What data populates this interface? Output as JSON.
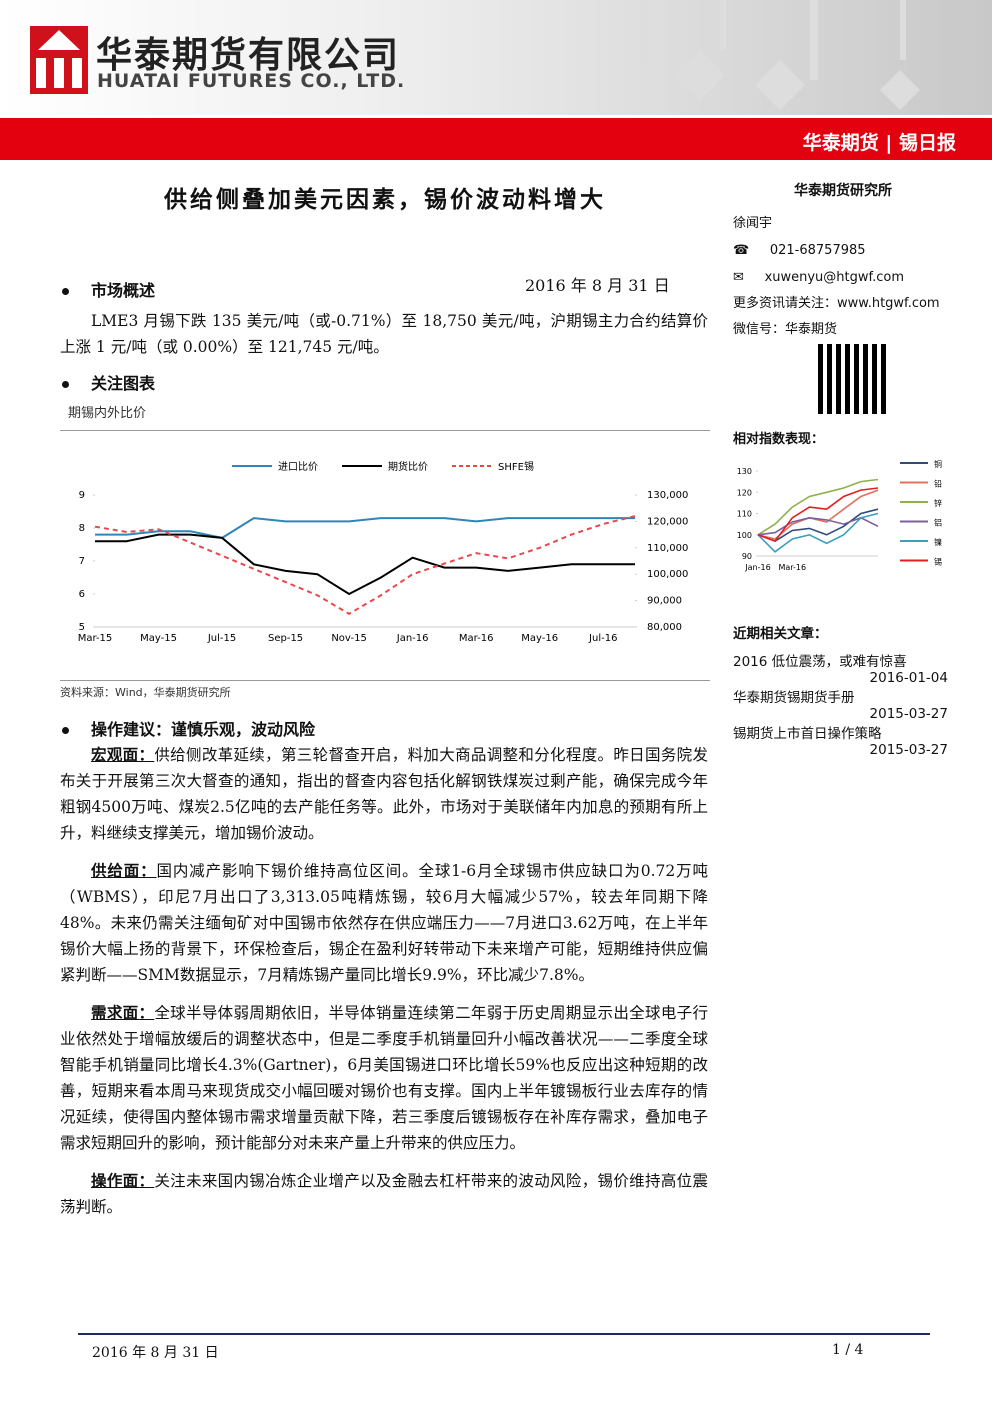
{
  "header": {
    "company_cn": "华泰期货有限公司",
    "company_en": "HUATAI FUTURES CO., LTD.",
    "report_tag": "华泰期货",
    "report_name": "锡日报"
  },
  "title": "供给侧叠加美元因素，锡价波动料增大",
  "date": "2016 年 8 月 31 日",
  "sections": [
    {
      "heading": "市场概述",
      "paragraphs": [
        {
          "text": "LME3 月锡下跌 135 美元/吨（或-0.71%）至 18,750 美元/吨，沪期锡主力合约结算价上涨 1 元/吨（或 0.00%）至 121,745 元/吨。"
        }
      ]
    },
    {
      "heading": "关注图表",
      "source": "资料来源：Wind，华泰期货研究所"
    },
    {
      "heading": "操作建议：谨慎乐观，波动风险",
      "paragraphs": [
        {
          "label": "宏观面：",
          "text": "供给侧改革延续，第三轮督查开启，料加大商品调整和分化程度。昨日国务院发布关于开展第三次大督查的通知，指出的督查内容包括化解钢铁煤炭过剩产能，确保完成今年粗钢4500万吨、煤炭2.5亿吨的去产能任务等。此外，市场对于美联储年内加息的预期有所上升，料继续支撑美元，增加锡价波动。"
        },
        {
          "label": "供给面：",
          "text": "国内减产影响下锡价维持高位区间。全球1-6月全球锡市供应缺口为0.72万吨（WBMS），印尼7月出口了3,313.05吨精炼锡，较6月大幅减少57%，较去年同期下降48%。未来仍需关注缅甸矿对中国锡市依然存在供应端压力——7月进口3.62万吨，在上半年锡价大幅上扬的背景下，环保检查后，锡企在盈利好转带动下未来增产可能，短期维持供应偏紧判断——SMM数据显示，7月精炼锡产量同比增长9.9%，环比减少7.8%。"
        },
        {
          "label": "需求面：",
          "text": "全球半导体弱周期依旧，半导体销量连续第二年弱于历史周期显示出全球电子行业依然处于增幅放缓后的调整状态中，但是二季度手机销量回升小幅改善状况——二季度全球智能手机销量同比增长4.3%(Gartner)，6月美国锡进口环比增长59%也反应出这种短期的改善，短期来看本周马来现货成交小幅回暖对锡价也有支撑。国内上半年镀锡板行业去库存的情况延续，使得国内整体锡市需求增量贡献下降，若三季度后镀锡板存在补库存需求，叠加电子需求短期回升的影响，预计能部分对未来产量上升带来的供应压力。"
        },
        {
          "label": "操作面：",
          "text": "关注未来国内锡冶炼企业增产以及金融去杠杆带来的波动风险，锡价维持高位震荡判断。"
        }
      ]
    }
  ],
  "sidebar": {
    "org": "华泰期货研究所",
    "analyst": "徐闻宇",
    "phone": "021-68757985",
    "email": "xuwenyu@htgwf.com",
    "more": "更多资讯请关注：www.htgwf.com",
    "wechat": "微信号：华泰期货",
    "articles_heading": "近期相关文章：",
    "articles": [
      {
        "title": "2016 低位震荡，或难有惊喜",
        "date": "2016-01-04"
      },
      {
        "title": "华泰期货锡期货手册",
        "date": "2015-03-27"
      },
      {
        "title": "锡期货上市首日操作策略",
        "date": "2015-03-27"
      }
    ]
  },
  "footer": {
    "date": "2016 年 8 月 31 日",
    "page": "1 / 4"
  },
  "chart_data": [
    {
      "type": "line",
      "title": "期锡内外比价",
      "categories": [
        "Mar-15",
        null,
        "May-15",
        null,
        "Jul-15",
        null,
        "Sep-15",
        null,
        "Nov-15",
        null,
        "Jan-16",
        null,
        "Mar-16",
        null,
        "May-16",
        null,
        "Jul-16",
        null
      ],
      "ylim": [
        5,
        9
      ],
      "yticks": [
        5,
        6,
        7,
        8,
        9
      ],
      "y2lim": [
        80000,
        130000
      ],
      "y2ticks": [
        {
          "value": 80000,
          "label": "80,000"
        },
        {
          "value": 90000,
          "label": "90,000"
        },
        {
          "value": 100000,
          "label": "100,000"
        },
        {
          "value": 110000,
          "label": "110,000"
        },
        {
          "value": 120000,
          "label": "120,000"
        },
        {
          "value": 130000,
          "label": "130,000"
        }
      ],
      "legend": "top",
      "series": [
        {
          "name": "进口比价",
          "color": "#2e86b8",
          "values": [
            7.8,
            7.8,
            7.9,
            7.9,
            7.7,
            8.3,
            8.2,
            8.2,
            8.2,
            8.3,
            8.3,
            8.3,
            8.2,
            8.3,
            8.3,
            8.3,
            8.3,
            8.3
          ]
        },
        {
          "name": "期货比价",
          "color": "#000000",
          "values": [
            7.6,
            7.6,
            7.8,
            7.8,
            7.7,
            6.9,
            6.7,
            6.6,
            6.0,
            6.5,
            7.1,
            6.8,
            6.8,
            6.7,
            6.8,
            6.9,
            6.9,
            6.9
          ]
        },
        {
          "name": "SHFE锡",
          "color": "#e8474c",
          "dashed": true,
          "axis": "y2",
          "values": [
            118000,
            116000,
            117000,
            112000,
            107000,
            102000,
            97000,
            92000,
            85000,
            92000,
            100000,
            104000,
            108000,
            106000,
            110000,
            115000,
            119000,
            122000
          ]
        }
      ]
    },
    {
      "type": "line",
      "title": "相对指数表现：",
      "categories": [
        "Jan-16",
        null,
        "Mar-16",
        null,
        null,
        null,
        null,
        null
      ],
      "ylim": [
        90,
        130
      ],
      "yticks": [
        90,
        100,
        110,
        120,
        130
      ],
      "legend": "right",
      "series": [
        {
          "name": "铜",
          "color": "#2f4b7c",
          "values": [
            100,
            97,
            102,
            103,
            100,
            104,
            110,
            112
          ]
        },
        {
          "name": "铅",
          "color": "#e07060",
          "values": [
            100,
            98,
            105,
            108,
            106,
            112,
            118,
            121
          ]
        },
        {
          "name": "锌",
          "color": "#8fb04a",
          "values": [
            100,
            105,
            113,
            118,
            120,
            122,
            125,
            126
          ]
        },
        {
          "name": "铝",
          "color": "#7b5fa0",
          "values": [
            100,
            101,
            106,
            108,
            107,
            105,
            108,
            104
          ]
        },
        {
          "name": "镍",
          "color": "#3aa0c0",
          "values": [
            100,
            92,
            98,
            100,
            96,
            100,
            108,
            110
          ]
        },
        {
          "name": "锡",
          "color": "#e02020",
          "values": [
            100,
            97,
            108,
            113,
            112,
            118,
            121,
            122
          ]
        }
      ]
    }
  ]
}
